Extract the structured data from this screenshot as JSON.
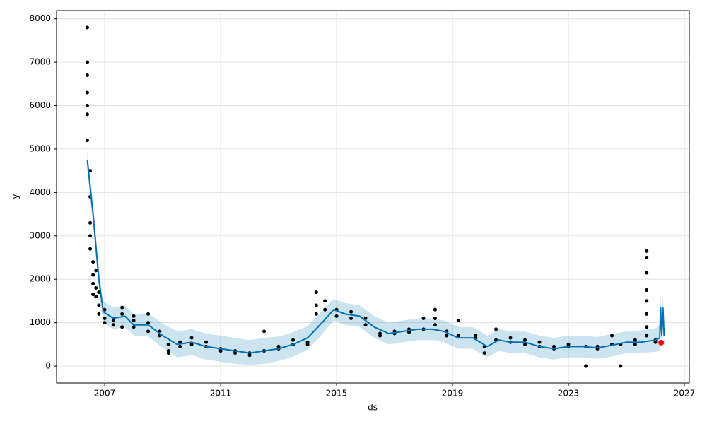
{
  "chart_data": {
    "type": "line",
    "xlabel": "ds",
    "ylabel": "y",
    "xlim": [
      2005.34,
      2027.17
    ],
    "ylim": [
      -390,
      8190
    ],
    "xticks": [
      2007,
      2011,
      2015,
      2019,
      2023,
      2027
    ],
    "yticks": [
      0,
      1000,
      2000,
      3000,
      4000,
      5000,
      6000,
      7000,
      8000
    ],
    "grid": true,
    "series": [
      {
        "kind": "band",
        "color": "#0072B2",
        "x": [
          2006.4,
          2006.6,
          2006.8,
          2006.95,
          2007.3,
          2007.7,
          2008.0,
          2008.5,
          2009.0,
          2009.5,
          2010.0,
          2010.5,
          2011.0,
          2011.5,
          2012.0,
          2012.5,
          2013.0,
          2013.5,
          2014.0,
          2014.5,
          2014.9,
          2015.3,
          2015.8,
          2016.3,
          2016.8,
          2017.3,
          2017.8,
          2018.3,
          2018.7,
          2019.2,
          2019.7,
          2020.2,
          2020.6,
          2021.0,
          2021.5,
          2022.0,
          2022.5,
          2023.0,
          2023.5,
          2024.0,
          2024.5,
          2025.0,
          2025.5,
          2026.0,
          2026.15,
          2026.18,
          2026.22,
          2026.26,
          2026.3
        ],
        "values": [
          4750,
          3500,
          2000,
          1250,
          1100,
          1150,
          950,
          950,
          700,
          500,
          550,
          450,
          400,
          350,
          300,
          350,
          400,
          500,
          650,
          1000,
          1300,
          1200,
          1150,
          900,
          750,
          800,
          850,
          850,
          800,
          650,
          650,
          450,
          600,
          550,
          550,
          450,
          400,
          450,
          450,
          420,
          480,
          550,
          550,
          600,
          650,
          1350,
          700,
          1350,
          700
        ],
        "lower": [
          4500,
          3250,
          1750,
          1000,
          850,
          900,
          700,
          680,
          420,
          200,
          250,
          150,
          100,
          50,
          30,
          50,
          120,
          220,
          380,
          730,
          1050,
          950,
          900,
          650,
          500,
          550,
          600,
          600,
          550,
          400,
          400,
          200,
          350,
          300,
          300,
          200,
          150,
          200,
          200,
          170,
          220,
          300,
          300,
          330,
          350,
          1000,
          400,
          1050,
          380
        ],
        "upper": [
          5000,
          3750,
          2250,
          1500,
          1350,
          1400,
          1200,
          1220,
          980,
          800,
          850,
          750,
          700,
          650,
          600,
          650,
          680,
          780,
          920,
          1270,
          1550,
          1450,
          1400,
          1150,
          1000,
          1050,
          1100,
          1100,
          1050,
          900,
          900,
          700,
          850,
          800,
          800,
          700,
          650,
          700,
          700,
          670,
          740,
          800,
          820,
          870,
          950,
          1600,
          1000,
          1620,
          1000
        ]
      },
      {
        "kind": "scatter",
        "color": "#000000",
        "x": [
          2006.4,
          2006.4,
          2006.4,
          2006.4,
          2006.4,
          2006.4,
          2006.4,
          2006.5,
          2006.5,
          2006.5,
          2006.5,
          2006.5,
          2006.6,
          2006.6,
          2006.6,
          2006.6,
          2006.7,
          2006.7,
          2006.7,
          2006.8,
          2006.8,
          2006.8,
          2007.0,
          2007.0,
          2007.0,
          2007.3,
          2007.3,
          2007.3,
          2007.6,
          2007.6,
          2007.6,
          2008.0,
          2008.0,
          2008.0,
          2008.5,
          2008.5,
          2008.5,
          2008.9,
          2008.9,
          2009.2,
          2009.2,
          2009.2,
          2009.6,
          2009.6,
          2010.0,
          2010.0,
          2010.5,
          2010.5,
          2011.0,
          2011.0,
          2011.5,
          2011.5,
          2012.0,
          2012.0,
          2012.5,
          2012.5,
          2013.0,
          2013.0,
          2013.5,
          2013.5,
          2014.0,
          2014.0,
          2014.3,
          2014.3,
          2014.3,
          2014.6,
          2014.6,
          2015.0,
          2015.0,
          2015.5,
          2015.5,
          2016.0,
          2016.0,
          2016.5,
          2016.5,
          2017.0,
          2017.0,
          2017.5,
          2017.5,
          2018.0,
          2018.0,
          2018.4,
          2018.4,
          2018.4,
          2018.8,
          2018.8,
          2019.2,
          2019.2,
          2019.8,
          2019.8,
          2020.1,
          2020.1,
          2020.5,
          2020.5,
          2021.0,
          2021.0,
          2021.5,
          2021.5,
          2022.0,
          2022.0,
          2022.5,
          2022.5,
          2023.0,
          2023.0,
          2023.6,
          2023.6,
          2024.0,
          2024.0,
          2024.5,
          2024.5,
          2024.8,
          2024.8,
          2025.3,
          2025.3,
          2025.7,
          2025.7,
          2025.7,
          2025.7,
          2025.7,
          2025.7,
          2025.7,
          2025.7,
          2026.0,
          2026.0
        ],
        "values": [
          7800,
          7000,
          6700,
          6300,
          6000,
          5800,
          5200,
          4500,
          3900,
          3300,
          3000,
          2700,
          2400,
          2100,
          1900,
          1650,
          2200,
          1800,
          1600,
          1700,
          1400,
          1200,
          1300,
          1100,
          1000,
          950,
          1100,
          1050,
          1350,
          1200,
          900,
          1050,
          900,
          1150,
          1200,
          1000,
          800,
          800,
          700,
          350,
          500,
          300,
          450,
          550,
          650,
          500,
          450,
          550,
          400,
          350,
          350,
          300,
          300,
          250,
          800,
          350,
          450,
          400,
          500,
          600,
          550,
          500,
          1700,
          1400,
          1200,
          1500,
          1300,
          1300,
          1150,
          1250,
          1100,
          1100,
          950,
          750,
          700,
          800,
          750,
          850,
          780,
          1100,
          850,
          1300,
          1100,
          950,
          800,
          700,
          700,
          1050,
          650,
          700,
          300,
          450,
          850,
          600,
          650,
          550,
          600,
          500,
          450,
          550,
          400,
          450,
          450,
          500,
          0,
          450,
          400,
          450,
          500,
          700,
          0,
          500,
          500,
          600,
          2650,
          2500,
          2150,
          1750,
          1500,
          1200,
          900,
          700,
          600,
          550
        ]
      },
      {
        "kind": "scatter",
        "color": "#ff0000",
        "x": [
          2026.2
        ],
        "values": [
          540
        ]
      }
    ]
  }
}
